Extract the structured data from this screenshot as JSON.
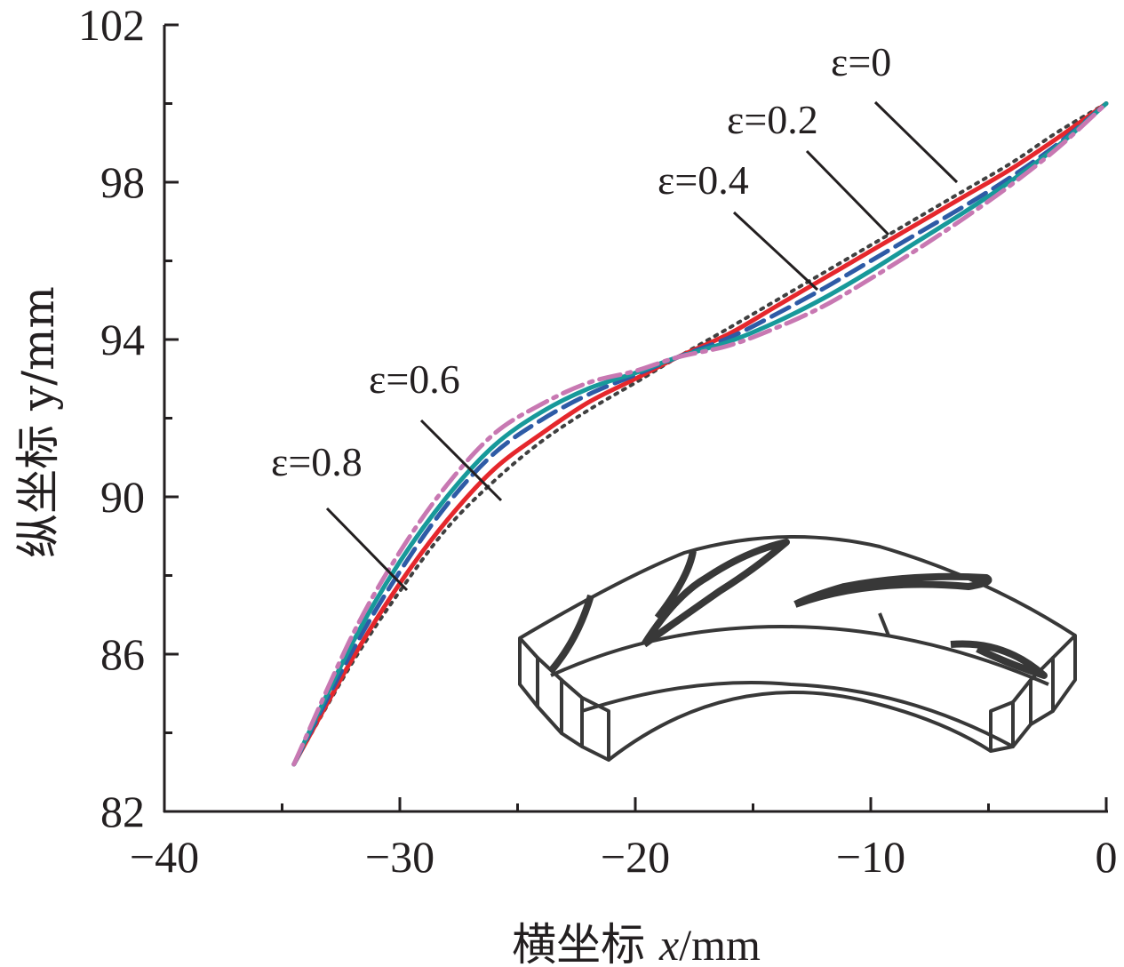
{
  "chart_data": {
    "type": "line",
    "xlabel_prefix": "横坐标 ",
    "xlabel_var": "x",
    "xlabel_unit": "/mm",
    "ylabel": "纵坐标 y/mm",
    "xlim": [
      -40,
      0
    ],
    "ylim": [
      82,
      102
    ],
    "x_ticks": [
      -40,
      -30,
      -20,
      -10,
      0
    ],
    "x_tick_labels": [
      "−40",
      "−30",
      "−20",
      "−10",
      "0"
    ],
    "y_ticks": [
      82,
      86,
      90,
      94,
      98,
      102
    ],
    "y_tick_labels": [
      "82",
      "86",
      "90",
      "94",
      "98",
      "102"
    ],
    "grid": false,
    "series": [
      {
        "name": "ε=0",
        "color": "#404040",
        "dash": "dotted",
        "x": [
          -34.5,
          -32,
          -30,
          -28,
          -26,
          -24,
          -22,
          -20,
          -18.2,
          -16,
          -14,
          -12,
          -10,
          -8,
          -6,
          -4,
          -2,
          0
        ],
        "y": [
          83.2,
          85.8,
          87.6,
          89.2,
          90.4,
          91.4,
          92.2,
          92.9,
          93.55,
          94.3,
          95.0,
          95.7,
          96.4,
          97.1,
          97.8,
          98.5,
          99.3,
          100.0
        ]
      },
      {
        "name": "ε=0.2",
        "color": "#e5272c",
        "dash": "solid",
        "x": [
          -34.5,
          -32,
          -30,
          -28,
          -26,
          -24,
          -22,
          -20,
          -18.2,
          -16,
          -14,
          -12,
          -10,
          -8,
          -6,
          -4,
          -2,
          0
        ],
        "y": [
          83.2,
          85.9,
          87.8,
          89.4,
          90.7,
          91.6,
          92.4,
          93.0,
          93.55,
          94.15,
          94.85,
          95.55,
          96.25,
          96.95,
          97.65,
          98.35,
          99.15,
          100.0
        ]
      },
      {
        "name": "ε=0.4",
        "color": "#2e5ba6",
        "dash": "dashed",
        "x": [
          -34.5,
          -32,
          -30,
          -28,
          -26,
          -24,
          -22,
          -20,
          -18.2,
          -16,
          -14,
          -12,
          -10,
          -8,
          -6,
          -4,
          -2,
          0
        ],
        "y": [
          83.2,
          86.1,
          88.1,
          89.8,
          91.1,
          91.95,
          92.6,
          93.1,
          93.55,
          94.05,
          94.65,
          95.3,
          96.0,
          96.7,
          97.4,
          98.15,
          99.0,
          100.0
        ]
      },
      {
        "name": "ε=0.6",
        "color": "#17999a",
        "dash": "solid",
        "x": [
          -34.5,
          -32,
          -30,
          -28,
          -26,
          -24,
          -22,
          -20,
          -18.2,
          -16,
          -14,
          -12,
          -10,
          -8,
          -6,
          -4,
          -2,
          0
        ],
        "y": [
          83.2,
          86.3,
          88.35,
          90.0,
          91.3,
          92.15,
          92.75,
          93.15,
          93.55,
          93.95,
          94.45,
          95.05,
          95.75,
          96.5,
          97.25,
          98.05,
          98.95,
          100.0
        ]
      },
      {
        "name": "ε=0.8",
        "color": "#c878b2",
        "dash": "dashdot",
        "x": [
          -34.5,
          -32,
          -30,
          -28,
          -26,
          -24,
          -22,
          -20,
          -18.2,
          -16,
          -14,
          -12,
          -10,
          -8,
          -6,
          -4,
          -2,
          0
        ],
        "y": [
          83.2,
          86.5,
          88.6,
          90.3,
          91.6,
          92.35,
          92.9,
          93.2,
          93.55,
          93.85,
          94.3,
          94.85,
          95.55,
          96.3,
          97.1,
          97.95,
          98.9,
          100.0
        ]
      }
    ],
    "annotations": [
      {
        "text": "ε=0",
        "series": "ε=0"
      },
      {
        "text": "ε=0.2",
        "series": "ε=0.2"
      },
      {
        "text": "ε=0.4",
        "series": "ε=0.4"
      },
      {
        "text": "ε=0.6",
        "series": "ε=0.6"
      },
      {
        "text": "ε=0.8",
        "series": "ε=0.8"
      }
    ]
  },
  "inset": {
    "icon": "impeller-sector-icon"
  }
}
